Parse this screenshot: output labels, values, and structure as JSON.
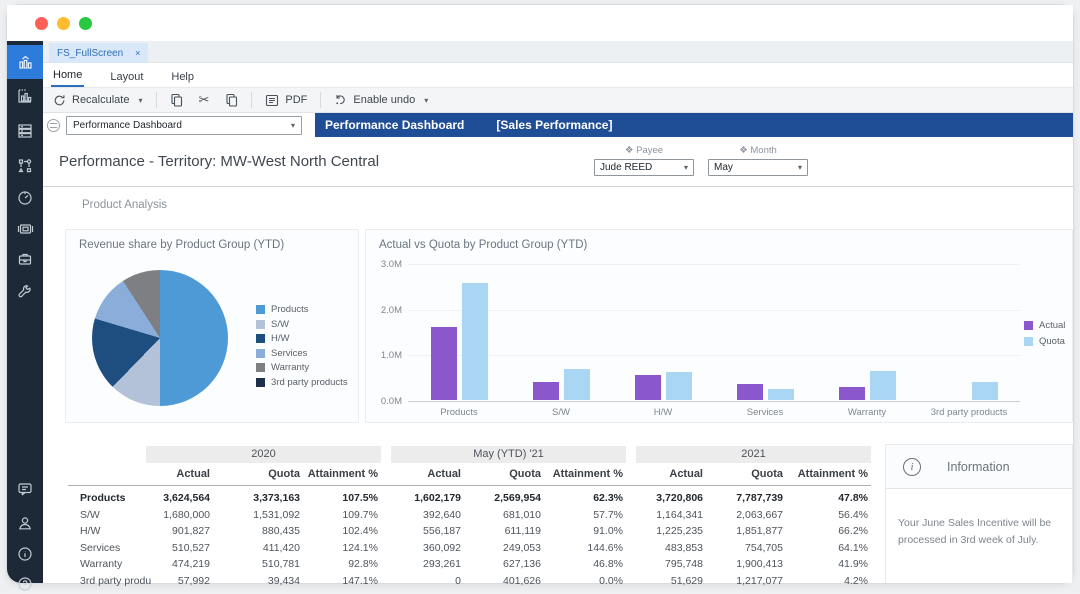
{
  "window": {
    "traffic_lights": {
      "close": "#ff5f57",
      "minimize": "#febc2e",
      "zoom": "#28c840"
    }
  },
  "sidebar": {
    "icons": [
      "dashboard",
      "charts",
      "data",
      "process",
      "gauge",
      "presentation",
      "toolbox",
      "wrench",
      "chat",
      "user",
      "info",
      "help"
    ],
    "active": "dashboard",
    "active_color": "#2d7bdb",
    "bg_color": "#1d2936"
  },
  "tab": {
    "label": "FS_FullScreen",
    "close": "×"
  },
  "menu": {
    "items": [
      "Home",
      "Layout",
      "Help"
    ],
    "active": "Home"
  },
  "toolbar": {
    "recalculate_label": "Recalculate",
    "pdf_label": "PDF",
    "enable_undo_label": "Enable undo"
  },
  "view_selector": {
    "value": "Performance Dashboard"
  },
  "title_bar": {
    "title": "Performance Dashboard",
    "subtitle": "[Sales Performance]",
    "bg": "#1f4e96"
  },
  "page": {
    "title": "Performance - Territory: MW-West North Central"
  },
  "filters": {
    "payee_label": "Payee",
    "payee_value": "Jude REED",
    "month_label": "Month",
    "month_value": "May"
  },
  "section": {
    "title": "Product Analysis"
  },
  "chart_data": [
    {
      "type": "pie",
      "title": "Revenue share by Product Group (YTD)",
      "labels": [
        "Products",
        "S/W",
        "H/W",
        "Services",
        "Warranty",
        "3rd party products"
      ],
      "values": [
        1602179,
        392640,
        556187,
        360092,
        293261,
        0
      ],
      "colors": [
        "#4d9ad6",
        "#b3c2d8",
        "#1e4d80",
        "#8badd9",
        "#7d7f82",
        "#1d2f4d"
      ],
      "legend_position": "right"
    },
    {
      "type": "bar",
      "title": "Actual vs Quota by Product Group (YTD)",
      "categories": [
        "Products",
        "S/W",
        "H/W",
        "Services",
        "Warranty",
        "3rd party products"
      ],
      "series": [
        {
          "name": "Actual",
          "color": "#8a57cc",
          "values": [
            1602179,
            392640,
            556187,
            360092,
            293261,
            0
          ]
        },
        {
          "name": "Quota",
          "color": "#a9d6f2",
          "values": [
            2569954,
            681010,
            611119,
            249053,
            627136,
            401626
          ]
        }
      ],
      "yticks": [
        {
          "label": "0.0M",
          "value": 0
        },
        {
          "label": "1.0M",
          "value": 1000000
        },
        {
          "label": "2.0M",
          "value": 2000000
        },
        {
          "label": "3.0M",
          "value": 3000000
        }
      ],
      "ylim": [
        0,
        3000000
      ],
      "legend_position": "right",
      "grid": true
    }
  ],
  "table": {
    "groups": [
      "2020",
      "May (YTD) '21",
      "2021"
    ],
    "sub_headers": [
      "Actual",
      "Quota",
      "Attainment %"
    ],
    "rows": [
      {
        "label": "Products",
        "bold": true,
        "values": [
          "3,624,564",
          "3,373,163",
          "107.5%",
          "1,602,179",
          "2,569,954",
          "62.3%",
          "3,720,806",
          "7,787,739",
          "47.8%"
        ]
      },
      {
        "label": "S/W",
        "bold": false,
        "values": [
          "1,680,000",
          "1,531,092",
          "109.7%",
          "392,640",
          "681,010",
          "57.7%",
          "1,164,341",
          "2,063,667",
          "56.4%"
        ]
      },
      {
        "label": "H/W",
        "bold": false,
        "values": [
          "901,827",
          "880,435",
          "102.4%",
          "556,187",
          "611,119",
          "91.0%",
          "1,225,235",
          "1,851,877",
          "66.2%"
        ]
      },
      {
        "label": "Services",
        "bold": false,
        "values": [
          "510,527",
          "411,420",
          "124.1%",
          "360,092",
          "249,053",
          "144.6%",
          "483,853",
          "754,705",
          "64.1%"
        ]
      },
      {
        "label": "Warranty",
        "bold": false,
        "values": [
          "474,219",
          "510,781",
          "92.8%",
          "293,261",
          "627,136",
          "46.8%",
          "795,748",
          "1,900,413",
          "41.9%"
        ]
      },
      {
        "label": "3rd party produ",
        "bold": false,
        "values": [
          "57,992",
          "39,434",
          "147.1%",
          "0",
          "401,626",
          "0.0%",
          "51,629",
          "1,217,077",
          "4.2%"
        ]
      }
    ]
  },
  "info_panel": {
    "title": "Information",
    "icon": "i",
    "message": "Your June Sales Incentive will be processed in 3rd week of July."
  }
}
